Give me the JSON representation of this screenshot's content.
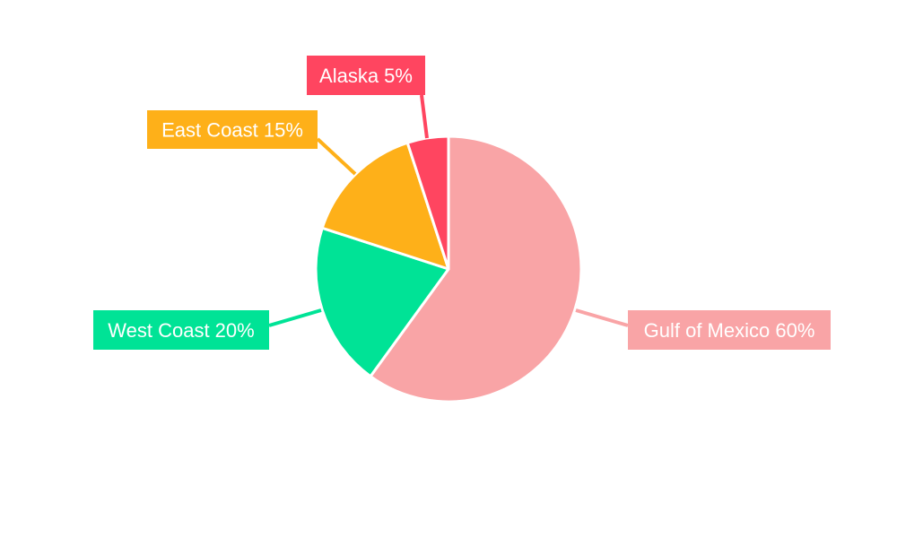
{
  "chart_data": {
    "type": "pie",
    "slices": [
      {
        "label": "Gulf of Mexico 60%",
        "name": "Gulf of Mexico",
        "value": 60,
        "color": "#F9A4A6"
      },
      {
        "label": "West Coast 20%",
        "name": "West Coast",
        "value": 20,
        "color": "#00E396"
      },
      {
        "label": "East Coast 15%",
        "name": "East Coast",
        "value": 15,
        "color": "#FEB019"
      },
      {
        "label": "Alaska 5%",
        "name": "Alaska",
        "value": 5,
        "color": "#FF4560"
      }
    ],
    "start_angle_deg": 0,
    "direction": "clockwise",
    "legend": "none"
  }
}
